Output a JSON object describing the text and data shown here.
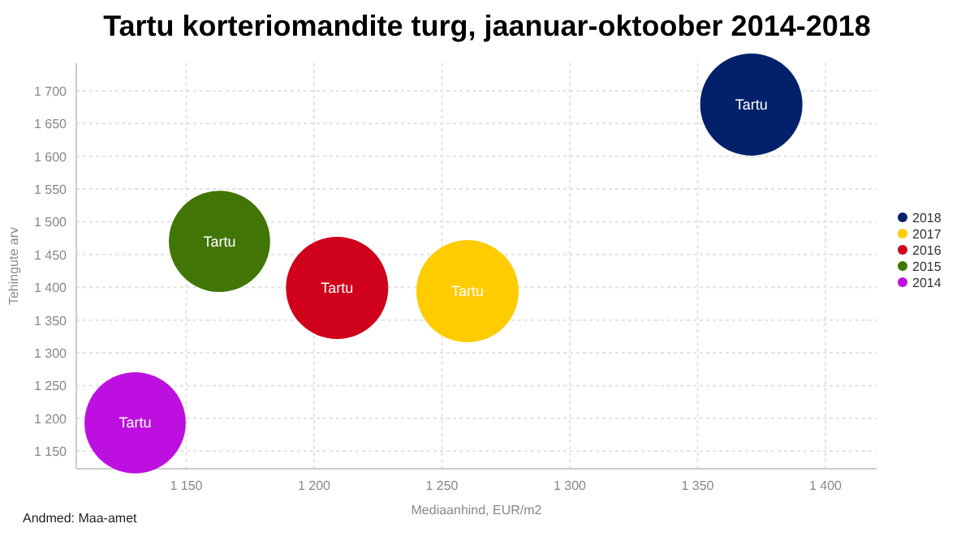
{
  "chart_data": {
    "type": "bubble",
    "title": "Tartu korteriomandite turg, jaanuar-oktoober 2014-2018",
    "xlabel": "Mediaanhind, EUR/m2",
    "ylabel": "Tehingute arv",
    "annotations": [
      "Andmed: Maa-amet"
    ],
    "xlim": [
      1107,
      1420
    ],
    "xticks": [
      {
        "value": 1150,
        "label": "1 150"
      },
      {
        "value": 1200,
        "label": "1 200"
      },
      {
        "value": 1250,
        "label": "1 250"
      },
      {
        "value": 1300,
        "label": "1 300"
      },
      {
        "value": 1350,
        "label": "1 350"
      },
      {
        "value": 1400,
        "label": "1 400"
      }
    ],
    "ylim": [
      1123,
      1742
    ],
    "yticks": [
      {
        "value": 1150,
        "label": "1 150"
      },
      {
        "value": 1200,
        "label": "1 200"
      },
      {
        "value": 1250,
        "label": "1 250"
      },
      {
        "value": 1300,
        "label": "1 300"
      },
      {
        "value": 1350,
        "label": "1 350"
      },
      {
        "value": 1400,
        "label": "1 400"
      },
      {
        "value": 1450,
        "label": "1 450"
      },
      {
        "value": 1500,
        "label": "1 500"
      },
      {
        "value": 1550,
        "label": "1 550"
      },
      {
        "value": 1600,
        "label": "1 600"
      },
      {
        "value": 1650,
        "label": "1 650"
      },
      {
        "value": 1700,
        "label": "1 700"
      }
    ],
    "grid": true,
    "legend": "right",
    "series": [
      {
        "name": "2018",
        "color": "#02216a",
        "x": [
          1371
        ],
        "values": [
          1679
        ],
        "sizes": [
          1
        ],
        "value_labels": [
          "Tartu"
        ]
      },
      {
        "name": "2017",
        "color": "#ffcc00",
        "x": [
          1260
        ],
        "values": [
          1394
        ],
        "sizes": [
          1
        ],
        "value_labels": [
          "Tartu"
        ]
      },
      {
        "name": "2016",
        "color": "#d0021b",
        "x": [
          1209
        ],
        "values": [
          1399
        ],
        "sizes": [
          1
        ],
        "value_labels": [
          "Tartu"
        ]
      },
      {
        "name": "2015",
        "color": "#417505",
        "x": [
          1163
        ],
        "values": [
          1470
        ],
        "sizes": [
          0.98
        ],
        "value_labels": [
          "Tartu"
        ]
      },
      {
        "name": "2014",
        "color": "#bd10e0",
        "x": [
          1130
        ],
        "values": [
          1193
        ],
        "sizes": [
          0.98
        ],
        "value_labels": [
          "Tartu"
        ]
      }
    ]
  }
}
